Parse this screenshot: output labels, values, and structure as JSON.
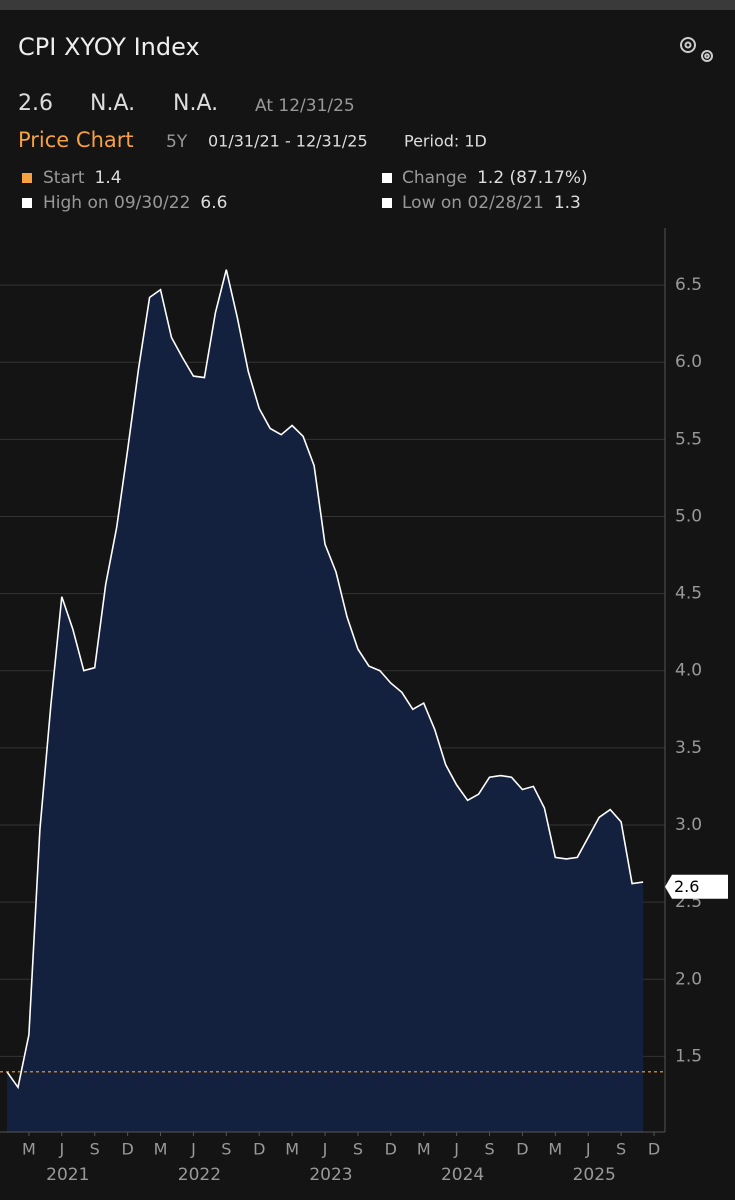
{
  "header": {
    "title": "CPI XYOY Index"
  },
  "quote": {
    "last": 2.6,
    "change": "N.A.",
    "pct_change": "N.A.",
    "as_of": "At 12/31/25"
  },
  "chart_header": {
    "label": "Price Chart",
    "range": "5Y",
    "dates": "01/31/21 - 12/31/25",
    "period": "Period: 1D"
  },
  "stats": [
    {
      "label": "Start",
      "value": 1.4
    },
    {
      "label": "Change",
      "value": "1.2 (87.17%)"
    },
    {
      "label": "High on 09/30/22",
      "value": 6.6
    },
    {
      "label": "Low on 02/28/21",
      "value": 1.3
    }
  ],
  "chart_data": {
    "type": "area",
    "x": [
      "2021-01",
      "2021-02",
      "2021-03",
      "2021-04",
      "2021-05",
      "2021-06",
      "2021-07",
      "2021-08",
      "2021-09",
      "2021-10",
      "2021-11",
      "2021-12",
      "2022-01",
      "2022-02",
      "2022-03",
      "2022-04",
      "2022-05",
      "2022-06",
      "2022-07",
      "2022-08",
      "2022-09",
      "2022-10",
      "2022-11",
      "2022-12",
      "2023-01",
      "2023-02",
      "2023-03",
      "2023-04",
      "2023-05",
      "2023-06",
      "2023-07",
      "2023-08",
      "2023-09",
      "2023-10",
      "2023-11",
      "2023-12",
      "2024-01",
      "2024-02",
      "2024-03",
      "2024-04",
      "2024-05",
      "2024-06",
      "2024-07",
      "2024-08",
      "2024-09",
      "2024-10",
      "2024-11",
      "2024-12",
      "2025-01",
      "2025-02",
      "2025-03",
      "2025-04",
      "2025-05",
      "2025-06",
      "2025-07",
      "2025-08",
      "2025-09",
      "2025-10",
      "2025-11"
    ],
    "values": [
      1.4,
      1.3,
      1.64,
      2.97,
      3.78,
      4.48,
      4.27,
      4.0,
      4.02,
      4.56,
      4.93,
      5.43,
      5.96,
      6.42,
      6.47,
      6.16,
      6.03,
      5.91,
      5.9,
      6.32,
      6.6,
      6.29,
      5.94,
      5.7,
      5.57,
      5.53,
      5.59,
      5.52,
      5.33,
      4.82,
      4.64,
      4.35,
      4.14,
      4.03,
      4.0,
      3.92,
      3.86,
      3.75,
      3.79,
      3.62,
      3.39,
      3.26,
      3.16,
      3.2,
      3.31,
      3.32,
      3.31,
      3.23,
      3.25,
      3.11,
      2.79,
      2.78,
      2.79,
      2.92,
      3.05,
      3.1,
      3.02,
      2.62,
      2.63
    ],
    "color": "#ffffff",
    "fill": "#13213f",
    "xlim": [
      "2021-01",
      "2026-01"
    ],
    "ylim": [
      1.01,
      6.87
    ],
    "yticks": [
      1.5,
      {
        "value": 2,
        "label": "2.0"
      },
      2.5,
      {
        "value": 3,
        "label": "3.0"
      },
      3.5,
      {
        "value": 4,
        "label": "4.0"
      },
      4.5,
      {
        "value": 5,
        "label": "5.0"
      },
      5.5,
      {
        "value": 6,
        "label": "6.0"
      },
      6.5
    ],
    "xticks": [
      {
        "value": "2021-03",
        "label": "M"
      },
      {
        "value": "2021-06",
        "label": "J"
      },
      {
        "value": "2021-09",
        "label": "S"
      },
      {
        "value": "2021-12",
        "label": "D"
      },
      {
        "value": "2022-03",
        "label": "M"
      },
      {
        "value": "2022-06",
        "label": "J"
      },
      {
        "value": "2022-09",
        "label": "S"
      },
      {
        "value": "2022-12",
        "label": "D"
      },
      {
        "value": "2023-03",
        "label": "M"
      },
      {
        "value": "2023-06",
        "label": "J"
      },
      {
        "value": "2023-09",
        "label": "S"
      },
      {
        "value": "2023-12",
        "label": "D"
      },
      {
        "value": "2024-03",
        "label": "M"
      },
      {
        "value": "2024-06",
        "label": "J"
      },
      {
        "value": "2024-09",
        "label": "S"
      },
      {
        "value": "2024-12",
        "label": "D"
      },
      {
        "value": "2025-03",
        "label": "M"
      },
      {
        "value": "2025-06",
        "label": "J"
      },
      {
        "value": "2025-09",
        "label": "S"
      },
      {
        "value": "2025-12",
        "label": "D"
      }
    ],
    "year_labels": [
      "2021",
      "2022",
      "2023",
      "2024",
      "2025"
    ],
    "grid": true,
    "y_axis_side": "right"
  }
}
